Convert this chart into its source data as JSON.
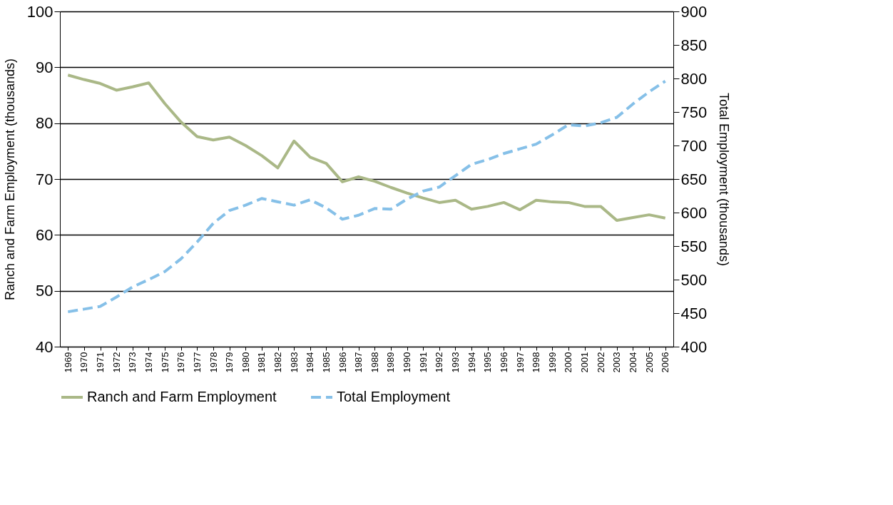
{
  "chart_data": {
    "type": "line",
    "categories": [
      "1969",
      "1970",
      "1971",
      "1972",
      "1973",
      "1974",
      "1975",
      "1976",
      "1977",
      "1978",
      "1979",
      "1980",
      "1981",
      "1982",
      "1983",
      "1984",
      "1985",
      "1986",
      "1987",
      "1988",
      "1989",
      "1990",
      "1991",
      "1992",
      "1993",
      "1994",
      "1995",
      "1996",
      "1997",
      "1998",
      "1999",
      "2000",
      "2001",
      "2002",
      "2003",
      "2004",
      "2005",
      "2006"
    ],
    "ylabel": "Ranch and Farm Employment (thousands)",
    "y2label": "Total Employment (thousands)",
    "ylim": [
      40,
      100
    ],
    "yticks": [
      40,
      50,
      60,
      70,
      80,
      90,
      100
    ],
    "y2lim": [
      400,
      900
    ],
    "y2ticks": [
      400,
      450,
      500,
      550,
      600,
      650,
      700,
      750,
      800,
      850,
      900
    ],
    "grid": "y",
    "legend": "bottom",
    "series": [
      {
        "name": "Ranch and Farm Employment",
        "color": "#aab887",
        "line_style": "solid",
        "values": [
          88.6,
          87.8,
          87.1,
          85.9,
          86.5,
          87.2,
          83.5,
          80.2,
          77.6,
          77.0,
          77.5,
          76.0,
          74.2,
          72.0,
          76.8,
          73.9,
          72.8,
          69.5,
          70.4,
          69.6,
          68.5,
          67.5,
          66.6,
          65.8,
          66.2,
          64.6,
          65.1,
          65.8,
          64.5,
          66.2,
          65.9,
          65.8,
          65.1,
          65.1,
          62.6,
          63.1,
          63.6,
          63.0
        ]
      },
      {
        "name": "Total Employment",
        "color": "#86c0e8",
        "line_style": "dashed",
        "axis": "y2",
        "values": [
          452,
          456,
          460,
          474,
          489,
          500,
          512,
          531,
          556,
          584,
          603,
          611,
          621,
          616,
          611,
          619,
          607,
          590,
          596,
          606,
          605,
          620,
          632,
          638,
          655,
          672,
          679,
          688,
          695,
          702,
          716,
          731,
          729,
          734,
          742,
          762,
          780,
          796
        ]
      }
    ]
  }
}
